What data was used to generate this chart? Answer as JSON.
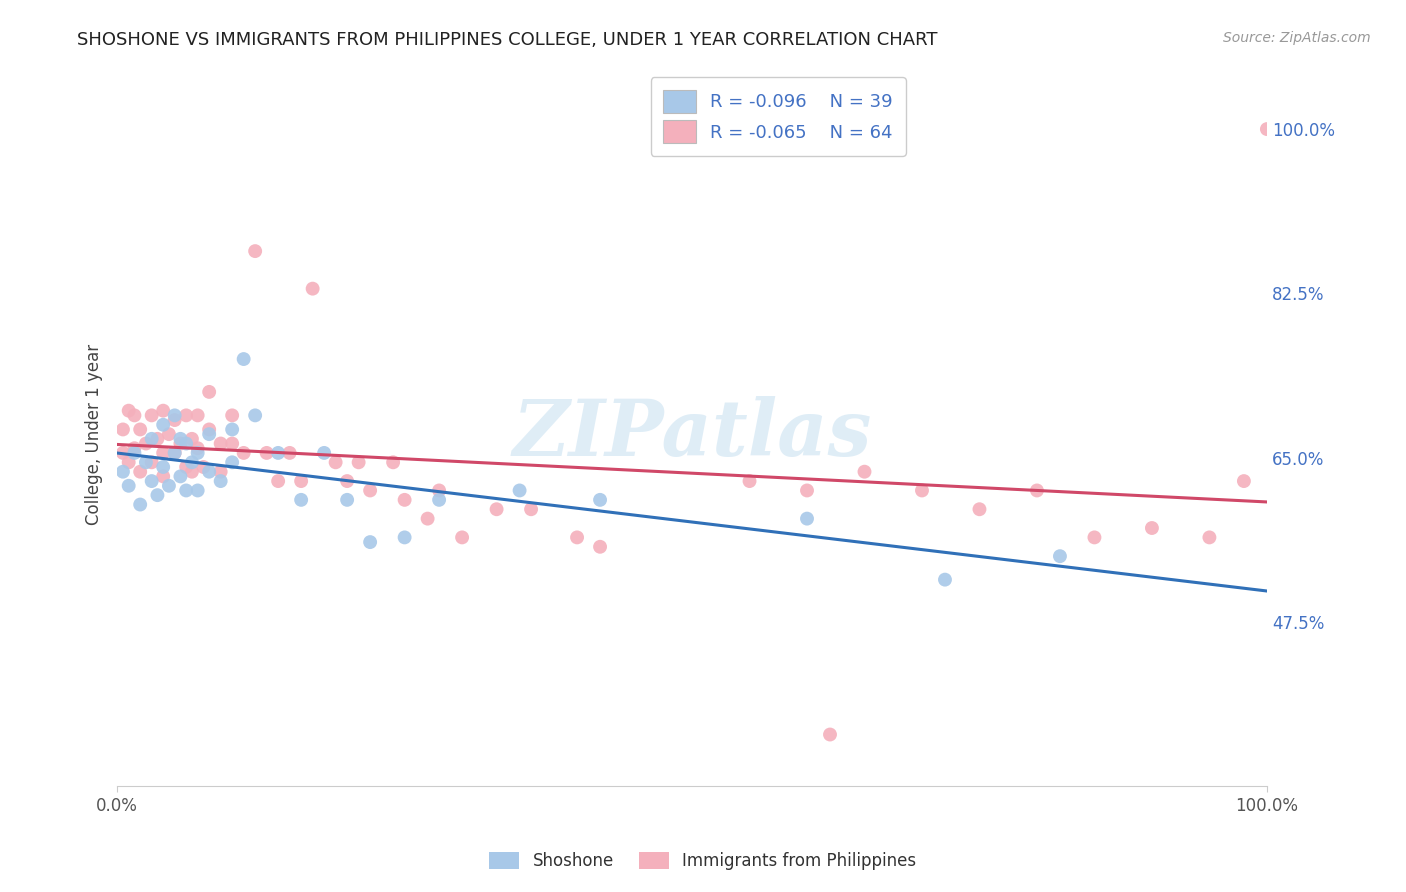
{
  "title": "SHOSHONE VS IMMIGRANTS FROM PHILIPPINES COLLEGE, UNDER 1 YEAR CORRELATION CHART",
  "source_text": "Source: ZipAtlas.com",
  "ylabel": "College, Under 1 year",
  "legend_label1": "Shoshone",
  "legend_label2": "Immigrants from Philippines",
  "r1": -0.096,
  "n1": 39,
  "r2": -0.065,
  "n2": 64,
  "color1": "#a8c8e8",
  "color2": "#f4b0bc",
  "line_color1": "#3070b8",
  "line_color2": "#d04868",
  "xlim": [
    0.0,
    1.0
  ],
  "ylim": [
    0.3,
    1.05
  ],
  "ytick_positions": [
    0.475,
    0.65,
    0.825,
    1.0
  ],
  "ytick_labels": [
    "47.5%",
    "65.0%",
    "82.5%",
    "100.0%"
  ],
  "watermark": "ZIPatlas",
  "grid_color": "#dddddd",
  "bg_color": "#ffffff",
  "shoshone_x": [
    0.005,
    0.01,
    0.015,
    0.02,
    0.025,
    0.03,
    0.03,
    0.035,
    0.04,
    0.04,
    0.045,
    0.05,
    0.05,
    0.055,
    0.055,
    0.06,
    0.06,
    0.065,
    0.07,
    0.07,
    0.08,
    0.08,
    0.09,
    0.1,
    0.1,
    0.11,
    0.12,
    0.14,
    0.16,
    0.18,
    0.2,
    0.22,
    0.25,
    0.28,
    0.35,
    0.42,
    0.6,
    0.72,
    0.82
  ],
  "shoshone_y": [
    0.635,
    0.62,
    0.655,
    0.6,
    0.645,
    0.625,
    0.67,
    0.61,
    0.64,
    0.685,
    0.62,
    0.655,
    0.695,
    0.63,
    0.67,
    0.615,
    0.665,
    0.645,
    0.615,
    0.655,
    0.635,
    0.675,
    0.625,
    0.645,
    0.68,
    0.755,
    0.695,
    0.655,
    0.605,
    0.655,
    0.605,
    0.56,
    0.565,
    0.605,
    0.615,
    0.605,
    0.585,
    0.52,
    0.545
  ],
  "phil_x": [
    0.005,
    0.005,
    0.01,
    0.01,
    0.015,
    0.015,
    0.02,
    0.02,
    0.025,
    0.03,
    0.03,
    0.035,
    0.04,
    0.04,
    0.04,
    0.045,
    0.05,
    0.05,
    0.055,
    0.06,
    0.06,
    0.065,
    0.065,
    0.07,
    0.07,
    0.075,
    0.08,
    0.08,
    0.09,
    0.09,
    0.1,
    0.1,
    0.11,
    0.12,
    0.13,
    0.14,
    0.15,
    0.16,
    0.17,
    0.19,
    0.2,
    0.21,
    0.22,
    0.24,
    0.25,
    0.27,
    0.28,
    0.3,
    0.33,
    0.36,
    0.4,
    0.42,
    0.55,
    0.6,
    0.62,
    0.65,
    0.7,
    0.75,
    0.8,
    0.85,
    0.9,
    0.95,
    0.98,
    1.0
  ],
  "phil_y": [
    0.68,
    0.655,
    0.7,
    0.645,
    0.66,
    0.695,
    0.68,
    0.635,
    0.665,
    0.695,
    0.645,
    0.67,
    0.7,
    0.655,
    0.63,
    0.675,
    0.69,
    0.655,
    0.665,
    0.695,
    0.64,
    0.67,
    0.635,
    0.695,
    0.66,
    0.64,
    0.68,
    0.72,
    0.665,
    0.635,
    0.695,
    0.665,
    0.655,
    0.87,
    0.655,
    0.625,
    0.655,
    0.625,
    0.83,
    0.645,
    0.625,
    0.645,
    0.615,
    0.645,
    0.605,
    0.585,
    0.615,
    0.565,
    0.595,
    0.595,
    0.565,
    0.555,
    0.625,
    0.615,
    0.355,
    0.635,
    0.615,
    0.595,
    0.615,
    0.565,
    0.575,
    0.565,
    0.625,
    1.0
  ]
}
